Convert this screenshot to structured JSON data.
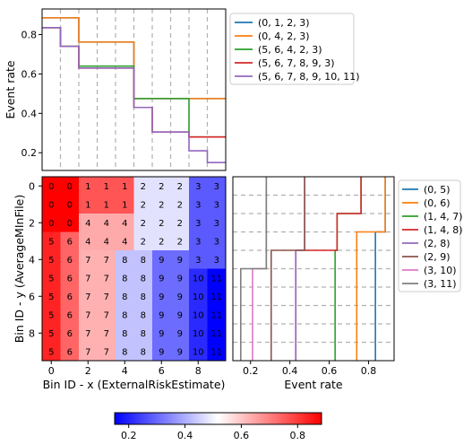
{
  "chart_data": [
    {
      "id": "top",
      "type": "line",
      "ylabel": "Event rate",
      "yticks": [
        0.2,
        0.4,
        0.6,
        0.8
      ],
      "ylim": [
        0.11,
        0.93
      ],
      "xlim": [
        -0.5,
        9.5
      ],
      "grid_vlines": [
        0.5,
        1.5,
        2.5,
        3.5,
        4.5,
        5.5,
        6.5,
        7.5,
        8.5
      ],
      "series": [
        {
          "name": "(0, 1, 2, 3)",
          "color": "#1f77b4",
          "steps": [
            [
              -0.5,
              0.885
            ],
            [
              1.5,
              0.762
            ],
            [
              4.5,
              0.475
            ],
            [
              9.5,
              0.475
            ]
          ]
        },
        {
          "name": "(0, 4, 2, 3)",
          "color": "#ff7f0e",
          "steps": [
            [
              -0.5,
              0.885
            ],
            [
              1.5,
              0.762
            ],
            [
              4.5,
              0.475
            ],
            [
              9.5,
              0.475
            ]
          ]
        },
        {
          "name": "(5, 6, 4, 2, 3)",
          "color": "#2ca02c",
          "steps": [
            [
              -0.5,
              0.835
            ],
            [
              0.5,
              0.74
            ],
            [
              1.5,
              0.64
            ],
            [
              4.5,
              0.475
            ],
            [
              7.5,
              0.28
            ],
            [
              9.5,
              0.28
            ]
          ]
        },
        {
          "name": "(5, 6, 7, 8, 9, 3)",
          "color": "#d62728",
          "steps": [
            [
              -0.5,
              0.835
            ],
            [
              0.5,
              0.74
            ],
            [
              1.5,
              0.63
            ],
            [
              4.5,
              0.43
            ],
            [
              5.5,
              0.305
            ],
            [
              7.5,
              0.28
            ],
            [
              9.5,
              0.28
            ]
          ]
        },
        {
          "name": "(5, 6, 7, 8, 9, 10, 11)",
          "color": "#9467bd",
          "steps": [
            [
              -0.5,
              0.835
            ],
            [
              0.5,
              0.74
            ],
            [
              1.5,
              0.63
            ],
            [
              4.5,
              0.43
            ],
            [
              5.5,
              0.305
            ],
            [
              7.5,
              0.21
            ],
            [
              8.5,
              0.15
            ],
            [
              9.5,
              0.15
            ]
          ]
        }
      ]
    },
    {
      "id": "heatmap",
      "type": "heatmap",
      "xlabel": "Bin ID - x (ExternalRiskEstimate)",
      "ylabel": "Bin ID - y (AverageMInFile)",
      "xticks": [
        0,
        2,
        4,
        6,
        8
      ],
      "yticks": [
        0,
        2,
        4,
        6,
        8
      ],
      "labels": [
        [
          0,
          0,
          1,
          1,
          1,
          2,
          2,
          2,
          3,
          3
        ],
        [
          0,
          0,
          1,
          1,
          1,
          2,
          2,
          2,
          3,
          3
        ],
        [
          0,
          0,
          4,
          4,
          4,
          2,
          2,
          2,
          3,
          3
        ],
        [
          5,
          6,
          4,
          4,
          4,
          2,
          2,
          2,
          3,
          3
        ],
        [
          5,
          6,
          7,
          7,
          8,
          8,
          9,
          9,
          3,
          3
        ],
        [
          5,
          6,
          7,
          7,
          8,
          8,
          9,
          9,
          10,
          11
        ],
        [
          5,
          6,
          7,
          7,
          8,
          8,
          9,
          9,
          10,
          11
        ],
        [
          5,
          6,
          7,
          7,
          8,
          8,
          9,
          9,
          10,
          11
        ],
        [
          5,
          6,
          7,
          7,
          8,
          8,
          9,
          9,
          10,
          11
        ],
        [
          5,
          6,
          7,
          7,
          8,
          8,
          9,
          9,
          10,
          11
        ]
      ],
      "group_values": {
        "0": 0.885,
        "1": 0.762,
        "2": 0.475,
        "3": 0.28,
        "4": 0.64,
        "5": 0.835,
        "6": 0.74,
        "7": 0.63,
        "8": 0.43,
        "9": 0.305,
        "10": 0.21,
        "11": 0.15
      }
    },
    {
      "id": "right",
      "type": "line",
      "xlabel": "Event rate",
      "xticks": [
        0.2,
        0.4,
        0.6,
        0.8
      ],
      "xlim": [
        0.11,
        0.93
      ],
      "ylim": [
        -0.5,
        9.5
      ],
      "grid_hlines": [
        0.5,
        1.5,
        2.5,
        3.5,
        4.5,
        5.5,
        6.5,
        7.5,
        8.5
      ],
      "series": [
        {
          "name": "(0, 5)",
          "color": "#1f77b4",
          "steps": [
            [
              0.835,
              9.5
            ],
            [
              0.835,
              2.5
            ],
            [
              0.885,
              2.5
            ],
            [
              0.885,
              -0.5
            ]
          ]
        },
        {
          "name": "(0, 6)",
          "color": "#ff7f0e",
          "steps": [
            [
              0.74,
              9.5
            ],
            [
              0.74,
              2.5
            ],
            [
              0.885,
              2.5
            ],
            [
              0.885,
              -0.5
            ]
          ]
        },
        {
          "name": "(1, 4, 7)",
          "color": "#2ca02c",
          "steps": [
            [
              0.63,
              9.5
            ],
            [
              0.63,
              3.5
            ],
            [
              0.64,
              3.5
            ],
            [
              0.64,
              1.5
            ],
            [
              0.762,
              1.5
            ],
            [
              0.762,
              -0.5
            ]
          ]
        },
        {
          "name": "(1, 4, 8)",
          "color": "#d62728",
          "steps": [
            [
              0.43,
              9.5
            ],
            [
              0.43,
              3.5
            ],
            [
              0.64,
              3.5
            ],
            [
              0.64,
              1.5
            ],
            [
              0.762,
              1.5
            ],
            [
              0.762,
              -0.5
            ]
          ]
        },
        {
          "name": "(2, 8)",
          "color": "#9467bd",
          "steps": [
            [
              0.43,
              9.5
            ],
            [
              0.43,
              3.5
            ],
            [
              0.475,
              3.5
            ],
            [
              0.475,
              -0.5
            ]
          ]
        },
        {
          "name": "(2, 9)",
          "color": "#8c564b",
          "steps": [
            [
              0.305,
              9.5
            ],
            [
              0.305,
              3.5
            ],
            [
              0.475,
              3.5
            ],
            [
              0.475,
              -0.5
            ]
          ]
        },
        {
          "name": "(3, 10)",
          "color": "#e377c2",
          "steps": [
            [
              0.21,
              9.5
            ],
            [
              0.21,
              4.5
            ],
            [
              0.28,
              4.5
            ],
            [
              0.28,
              -0.5
            ]
          ]
        },
        {
          "name": "(3, 11)",
          "color": "#7f7f7f",
          "steps": [
            [
              0.15,
              9.5
            ],
            [
              0.15,
              4.5
            ],
            [
              0.28,
              4.5
            ],
            [
              0.28,
              -0.5
            ]
          ]
        }
      ]
    },
    {
      "id": "colorbar",
      "type": "colorbar",
      "range": [
        0.15,
        0.885
      ],
      "ticks": [
        0.2,
        0.4,
        0.6,
        0.8
      ],
      "colormap": "bwr"
    }
  ]
}
